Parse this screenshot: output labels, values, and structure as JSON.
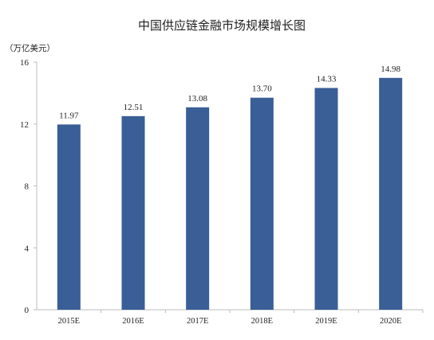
{
  "chart_data": {
    "type": "bar",
    "title": "中国供应链金融市场规模增长图",
    "unit_label": "（万亿美元）",
    "categories": [
      "2015E",
      "2016E",
      "2017E",
      "2018E",
      "2019E",
      "2020E"
    ],
    "values": [
      11.97,
      12.51,
      13.08,
      13.7,
      14.33,
      14.98
    ],
    "value_labels": [
      "11.97",
      "12.51",
      "13.08",
      "13.70",
      "14.33",
      "14.98"
    ],
    "ylim": [
      0,
      16
    ],
    "yticks": [
      "0",
      "4",
      "8",
      "12",
      "16"
    ],
    "ytick_values": [
      0,
      4,
      8,
      12,
      16
    ],
    "grid": false,
    "colors": {
      "bar": "#3a5e96",
      "axis": "#bdbdbd",
      "text": "#222222"
    }
  }
}
